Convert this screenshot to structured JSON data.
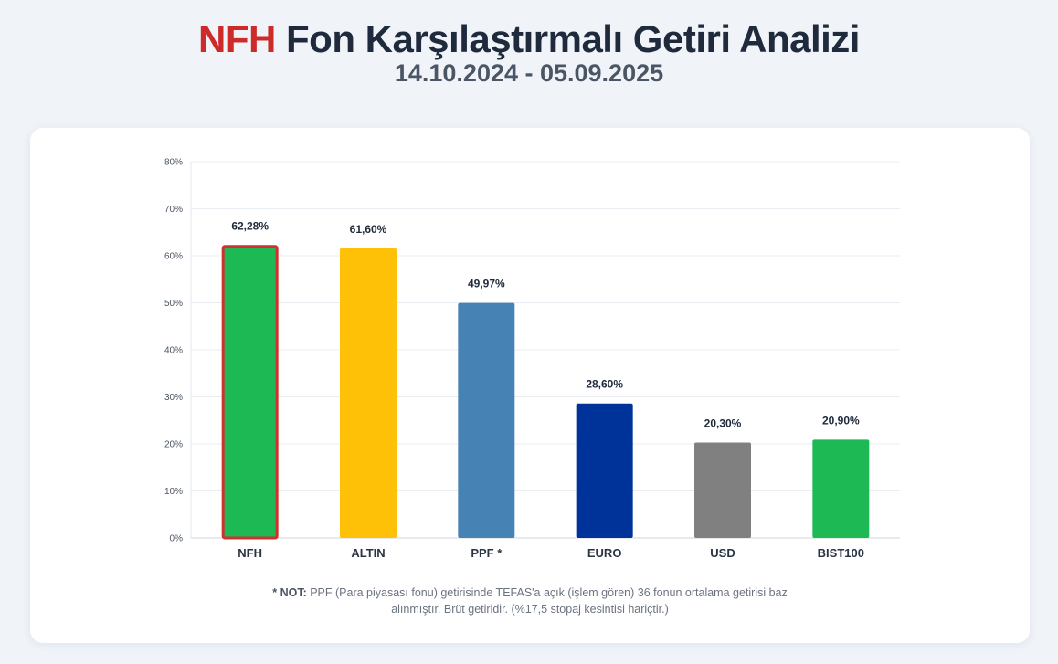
{
  "header": {
    "brand": "NFH",
    "title_rest": "Fon Karşılaştırmalı Getiri Analizi",
    "subtitle": "14.10.2024 - 05.09.2025"
  },
  "chart_data": {
    "type": "bar",
    "categories": [
      "NFH",
      "ALTIN",
      "PPF *",
      "EURO",
      "USD",
      "BIST100"
    ],
    "values": [
      62.28,
      61.6,
      49.97,
      28.6,
      20.3,
      20.9
    ],
    "value_labels": [
      "62,28%",
      "61,60%",
      "49,97%",
      "28,60%",
      "20,30%",
      "20,90%"
    ],
    "colors": [
      "#1db954",
      "#ffc107",
      "#4682b4",
      "#003399",
      "#808080",
      "#1db954"
    ],
    "highlight_border_color": "#d32f2f",
    "highlight_index": 0,
    "ylim": [
      0,
      80
    ],
    "yticks": [
      0,
      10,
      20,
      30,
      40,
      50,
      60,
      70,
      80
    ],
    "ytick_labels": [
      "0%",
      "10%",
      "20%",
      "30%",
      "40%",
      "50%",
      "60%",
      "70%",
      "80%"
    ],
    "grid": true,
    "legend": "none"
  },
  "note": {
    "label": "* NOT:",
    "line1": "PPF (Para piyasası fonu) getirisinde TEFAS'a açık (işlem gören) 36 fonun ortalama getirisi baz",
    "line2": "alınmıştır. Brüt getiridir. (%17,5 stopaj kesintisi hariçtir.)"
  }
}
